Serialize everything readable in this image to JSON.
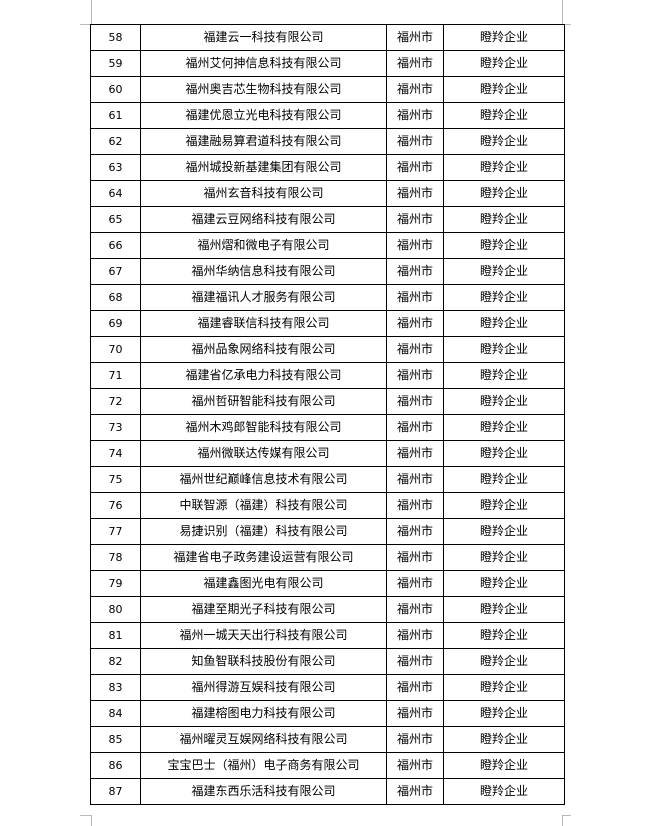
{
  "table": {
    "rows": [
      {
        "no": "58",
        "name": "福建云一科技有限公司",
        "city": "福州市",
        "type": "瞪羚企业"
      },
      {
        "no": "59",
        "name": "福州艾何抻信息科技有限公司",
        "city": "福州市",
        "type": "瞪羚企业"
      },
      {
        "no": "60",
        "name": "福州奥吉芯生物科技有限公司",
        "city": "福州市",
        "type": "瞪羚企业"
      },
      {
        "no": "61",
        "name": "福建优恩立光电科技有限公司",
        "city": "福州市",
        "type": "瞪羚企业"
      },
      {
        "no": "62",
        "name": "福建融易算君道科技有限公司",
        "city": "福州市",
        "type": "瞪羚企业"
      },
      {
        "no": "63",
        "name": "福州城投新基建集团有限公司",
        "city": "福州市",
        "type": "瞪羚企业"
      },
      {
        "no": "64",
        "name": "福州玄音科技有限公司",
        "city": "福州市",
        "type": "瞪羚企业"
      },
      {
        "no": "65",
        "name": "福建云豆网络科技有限公司",
        "city": "福州市",
        "type": "瞪羚企业"
      },
      {
        "no": "66",
        "name": "福州熠和微电子有限公司",
        "city": "福州市",
        "type": "瞪羚企业"
      },
      {
        "no": "67",
        "name": "福州华纳信息科技有限公司",
        "city": "福州市",
        "type": "瞪羚企业"
      },
      {
        "no": "68",
        "name": "福建福讯人才服务有限公司",
        "city": "福州市",
        "type": "瞪羚企业"
      },
      {
        "no": "69",
        "name": "福建睿联信科技有限公司",
        "city": "福州市",
        "type": "瞪羚企业"
      },
      {
        "no": "70",
        "name": "福州品象网络科技有限公司",
        "city": "福州市",
        "type": "瞪羚企业"
      },
      {
        "no": "71",
        "name": "福建省亿承电力科技有限公司",
        "city": "福州市",
        "type": "瞪羚企业"
      },
      {
        "no": "72",
        "name": "福州哲研智能科技有限公司",
        "city": "福州市",
        "type": "瞪羚企业"
      },
      {
        "no": "73",
        "name": "福州木鸡郎智能科技有限公司",
        "city": "福州市",
        "type": "瞪羚企业"
      },
      {
        "no": "74",
        "name": "福州微联达传媒有限公司",
        "city": "福州市",
        "type": "瞪羚企业"
      },
      {
        "no": "75",
        "name": "福州世纪巅峰信息技术有限公司",
        "city": "福州市",
        "type": "瞪羚企业"
      },
      {
        "no": "76",
        "name": "中联智源（福建）科技有限公司",
        "city": "福州市",
        "type": "瞪羚企业"
      },
      {
        "no": "77",
        "name": "易捷识别（福建）科技有限公司",
        "city": "福州市",
        "type": "瞪羚企业"
      },
      {
        "no": "78",
        "name": "福建省电子政务建设运营有限公司",
        "city": "福州市",
        "type": "瞪羚企业"
      },
      {
        "no": "79",
        "name": "福建鑫图光电有限公司",
        "city": "福州市",
        "type": "瞪羚企业"
      },
      {
        "no": "80",
        "name": "福建至期光子科技有限公司",
        "city": "福州市",
        "type": "瞪羚企业"
      },
      {
        "no": "81",
        "name": "福州一城天天出行科技有限公司",
        "city": "福州市",
        "type": "瞪羚企业"
      },
      {
        "no": "82",
        "name": "知鱼智联科技股份有限公司",
        "city": "福州市",
        "type": "瞪羚企业"
      },
      {
        "no": "83",
        "name": "福州得游互娱科技有限公司",
        "city": "福州市",
        "type": "瞪羚企业"
      },
      {
        "no": "84",
        "name": "福建榕图电力科技有限公司",
        "city": "福州市",
        "type": "瞪羚企业"
      },
      {
        "no": "85",
        "name": "福州曜灵互娱网络科技有限公司",
        "city": "福州市",
        "type": "瞪羚企业"
      },
      {
        "no": "86",
        "name": "宝宝巴士（福州）电子商务有限公司",
        "city": "福州市",
        "type": "瞪羚企业"
      },
      {
        "no": "87",
        "name": "福建东西乐活科技有限公司",
        "city": "福州市",
        "type": "瞪羚企业"
      }
    ]
  }
}
